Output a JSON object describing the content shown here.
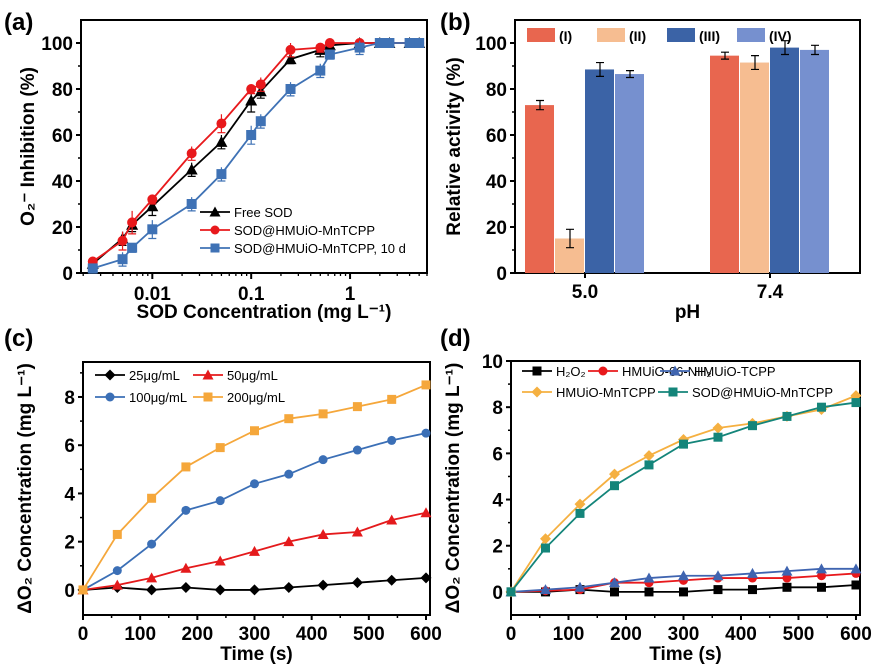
{
  "chart_data": [
    {
      "panel_label": "(a)",
      "type": "line",
      "xlabel": "SOD Concentration (mg L⁻¹)",
      "ylabel": "O₂⁻ Inhibition (%)",
      "xscale": "log",
      "xlim": [
        0.0019,
        6
      ],
      "ylim": [
        0,
        110
      ],
      "xticks": [
        0.01,
        0.1,
        1
      ],
      "xtick_labels": [
        "0.01",
        "0.1",
        "1"
      ],
      "yticks": [
        0,
        20,
        40,
        60,
        80,
        100
      ],
      "legend_position": "bottom-right",
      "x": [
        0.0025,
        0.005,
        0.00625,
        0.01,
        0.025,
        0.05,
        0.1,
        0.125,
        0.25,
        0.5,
        0.625,
        1.25,
        2,
        2.5,
        4,
        5
      ],
      "series": [
        {
          "name": "Free SOD",
          "color": "#000000",
          "marker": "triangle",
          "values": [
            4,
            15,
            21,
            29,
            45,
            57,
            75,
            79,
            93,
            97,
            99,
            100,
            100,
            100,
            100,
            100
          ],
          "errors": [
            2,
            3,
            3,
            4,
            3,
            3,
            5,
            3,
            2,
            3,
            1,
            1,
            0,
            0,
            0,
            0
          ]
        },
        {
          "name": "SOD@HMUiO-MnTCPP",
          "color": "#e8191c",
          "marker": "circle",
          "values": [
            5,
            14,
            22,
            32,
            52,
            65,
            80,
            82,
            97,
            98,
            100,
            100,
            100,
            100,
            100,
            100
          ],
          "errors": [
            2,
            4,
            5,
            2,
            3,
            4,
            2,
            3,
            3,
            2,
            1,
            1,
            0,
            0,
            0,
            0
          ]
        },
        {
          "name": "SOD@HMUiO-MnTCPP, 10 d",
          "color": "#3f72b5",
          "marker": "square",
          "values": [
            2,
            6,
            11,
            19,
            30,
            43,
            60,
            66,
            80,
            88,
            95,
            98,
            100,
            100,
            100,
            100
          ],
          "errors": [
            2,
            3,
            2,
            4,
            3,
            3,
            4,
            3,
            3,
            3,
            2,
            3,
            0,
            0,
            0,
            0
          ]
        }
      ]
    },
    {
      "panel_label": "(b)",
      "type": "bar",
      "xlabel": "pH",
      "ylabel": "Relative activity (%)",
      "ylim": [
        0,
        110
      ],
      "yticks": [
        0,
        20,
        40,
        60,
        80,
        100
      ],
      "categories": [
        "5.0",
        "7.4"
      ],
      "legend_position": "top",
      "series": [
        {
          "name": "(I)",
          "color": "#e8664f",
          "values": [
            73,
            94.5
          ],
          "errors": [
            2,
            1.5
          ]
        },
        {
          "name": "(II)",
          "color": "#f6bd91",
          "values": [
            15,
            91.5
          ],
          "errors": [
            4,
            3
          ]
        },
        {
          "name": "(III)",
          "color": "#3b63a6",
          "values": [
            88.5,
            98
          ],
          "errors": [
            3,
            3
          ]
        },
        {
          "name": "(IV)",
          "color": "#7690cf",
          "values": [
            86.5,
            97
          ],
          "errors": [
            1.5,
            2
          ]
        }
      ]
    },
    {
      "panel_label": "(c)",
      "type": "line",
      "xlabel": "Time (s)",
      "ylabel": "ΔO₂ Concentration (mg L⁻¹)",
      "xlim": [
        0,
        607
      ],
      "ylim": [
        -1.04,
        9.45
      ],
      "xticks": [
        0,
        100,
        200,
        300,
        400,
        500,
        600
      ],
      "yticks": [
        0,
        2,
        4,
        6,
        8
      ],
      "legend_position": "top-left",
      "x": [
        0,
        60,
        120,
        180,
        240,
        300,
        360,
        420,
        480,
        540,
        600
      ],
      "series": [
        {
          "name": "25μg/mL",
          "color": "#000000",
          "marker": "diamond",
          "values": [
            0,
            0.1,
            0,
            0.1,
            0,
            0,
            0.1,
            0.2,
            0.3,
            0.4,
            0.5
          ]
        },
        {
          "name": "50μg/mL",
          "color": "#e41a1c",
          "marker": "triangle",
          "values": [
            0,
            0.2,
            0.5,
            0.9,
            1.2,
            1.6,
            2.0,
            2.3,
            2.4,
            2.9,
            3.2
          ]
        },
        {
          "name": "100μg/mL",
          "color": "#3b6fb6",
          "marker": "circle",
          "values": [
            0,
            0.8,
            1.9,
            3.3,
            3.7,
            4.4,
            4.8,
            5.4,
            5.8,
            6.2,
            6.5
          ]
        },
        {
          "name": "200μg/mL",
          "color": "#f5a73b",
          "marker": "square",
          "values": [
            0,
            2.3,
            3.8,
            5.1,
            5.9,
            6.6,
            7.1,
            7.3,
            7.6,
            7.9,
            8.5
          ]
        }
      ]
    },
    {
      "panel_label": "(d)",
      "type": "line",
      "xlabel": "Time (s)",
      "ylabel": "ΔO₂ Concentration (mg L⁻¹)",
      "xlim": [
        0,
        607
      ],
      "ylim": [
        -1,
        10
      ],
      "xticks": [
        0,
        100,
        200,
        300,
        400,
        500,
        600
      ],
      "yticks": [
        0,
        2,
        4,
        6,
        8,
        10
      ],
      "legend_position": "top-left",
      "x": [
        0,
        60,
        120,
        180,
        240,
        300,
        360,
        420,
        480,
        540,
        600
      ],
      "series": [
        {
          "name": "H₂O₂",
          "color": "#000000",
          "marker": "square",
          "values": [
            0,
            0,
            0.1,
            0,
            0,
            0,
            0.1,
            0.1,
            0.2,
            0.2,
            0.3
          ]
        },
        {
          "name": "HMUiO-66-NH₂",
          "color": "#e8191c",
          "marker": "circle",
          "values": [
            0,
            0.05,
            0.1,
            0.4,
            0.4,
            0.5,
            0.6,
            0.6,
            0.6,
            0.7,
            0.8
          ]
        },
        {
          "name": "HMUiO-TCPP",
          "color": "#3f64b0",
          "marker": "triangle",
          "values": [
            0,
            0.1,
            0.2,
            0.4,
            0.6,
            0.7,
            0.7,
            0.8,
            0.9,
            1.0,
            1.0
          ]
        },
        {
          "name": "HMUiO-MnTCPP",
          "color": "#f5b041",
          "marker": "diamond",
          "values": [
            0,
            2.3,
            3.8,
            5.1,
            5.9,
            6.6,
            7.1,
            7.3,
            7.6,
            7.9,
            8.5
          ]
        },
        {
          "name": "SOD@HMUiO-MnTCPP",
          "color": "#14857a",
          "marker": "square",
          "values": [
            0,
            1.9,
            3.4,
            4.6,
            5.5,
            6.4,
            6.7,
            7.2,
            7.6,
            8.0,
            8.2
          ]
        }
      ]
    }
  ]
}
